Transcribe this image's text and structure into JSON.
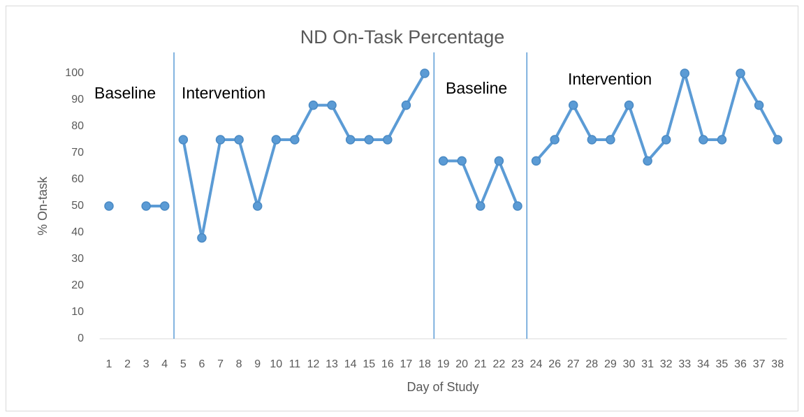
{
  "chart_data": {
    "type": "line",
    "title": "ND On-Task Percentage",
    "x_label": "Day of Study",
    "y_label": "% On-task",
    "categories": [
      "1",
      "2",
      "3",
      "4",
      "5",
      "6",
      "7",
      "8",
      "9",
      "10",
      "11",
      "12",
      "13",
      "14",
      "15",
      "16",
      "17",
      "18",
      "19",
      "20",
      "21",
      "22",
      "23",
      "24",
      "26",
      "27",
      "28",
      "29",
      "30",
      "31",
      "32",
      "33",
      "34",
      "35",
      "36",
      "37",
      "38"
    ],
    "ylim": [
      0,
      100
    ],
    "yticks": [
      0,
      10,
      20,
      30,
      40,
      50,
      60,
      70,
      80,
      90,
      100
    ],
    "color": "#5b9bd5",
    "series": [
      {
        "label": "Baseline",
        "values": [
          50,
          null,
          50,
          50,
          null,
          null,
          null,
          null,
          null,
          null,
          null,
          null,
          null,
          null,
          null,
          null,
          null,
          null,
          null,
          null,
          null,
          null,
          null,
          null,
          null,
          null,
          null,
          null,
          null,
          null,
          null,
          null,
          null,
          null,
          null,
          null,
          null
        ]
      },
      {
        "label": "Intervention",
        "values": [
          null,
          null,
          null,
          null,
          75,
          38,
          75,
          75,
          50,
          75,
          75,
          88,
          88,
          75,
          75,
          75,
          88,
          100,
          null,
          null,
          null,
          null,
          null,
          null,
          null,
          null,
          null,
          null,
          null,
          null,
          null,
          null,
          null,
          null,
          null,
          null,
          null
        ]
      },
      {
        "label": "Baseline",
        "values": [
          null,
          null,
          null,
          null,
          null,
          null,
          null,
          null,
          null,
          null,
          null,
          null,
          null,
          null,
          null,
          null,
          null,
          null,
          67,
          67,
          50,
          67,
          50,
          null,
          null,
          null,
          null,
          null,
          null,
          null,
          null,
          null,
          null,
          null,
          null,
          null,
          null
        ]
      },
      {
        "label": "Intervention",
        "values": [
          null,
          null,
          null,
          null,
          null,
          null,
          null,
          null,
          null,
          null,
          null,
          null,
          null,
          null,
          null,
          null,
          null,
          null,
          null,
          null,
          null,
          null,
          null,
          67,
          75,
          88,
          75,
          75,
          88,
          67,
          75,
          100,
          75,
          75,
          100,
          88,
          75
        ]
      }
    ]
  }
}
